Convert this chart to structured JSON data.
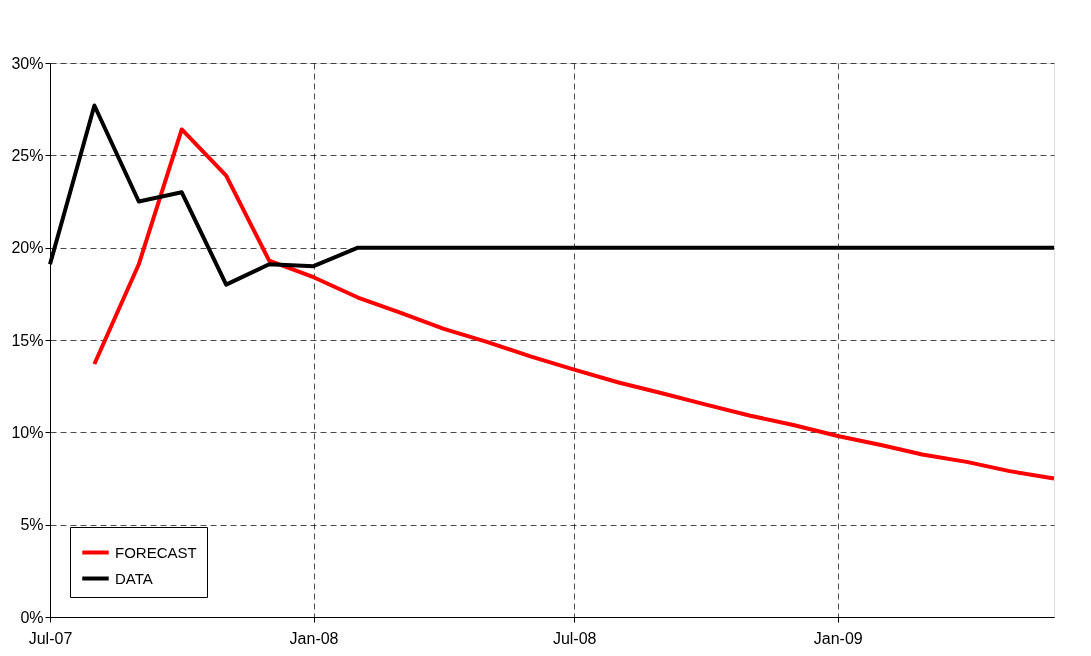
{
  "chart_data": {
    "type": "line",
    "x": [
      "2007-07",
      "2007-08",
      "2007-09",
      "2007-10",
      "2007-11",
      "2007-12",
      "2008-01",
      "2008-02",
      "2008-03",
      "2008-04",
      "2008-05",
      "2008-06",
      "2008-07",
      "2008-08",
      "2008-09",
      "2008-10",
      "2008-11",
      "2008-12",
      "2009-01",
      "2009-02",
      "2009-03",
      "2009-04",
      "2009-05",
      "2009-06"
    ],
    "series": [
      {
        "name": "FORECAST",
        "color": "#ff0000",
        "values": [
          null,
          13.7,
          19.1,
          26.4,
          23.9,
          19.3,
          18.4,
          17.3,
          16.5,
          15.6,
          14.9,
          14.1,
          13.4,
          12.7,
          12.1,
          11.5,
          10.9,
          10.4,
          9.8,
          9.3,
          8.8,
          8.4,
          7.9,
          7.5
        ]
      },
      {
        "name": "DATA",
        "color": "#000000",
        "values": [
          19.1,
          27.7,
          22.5,
          23.0,
          18.0,
          19.1,
          19.0,
          20,
          20,
          20,
          20,
          20,
          20,
          20,
          20,
          20,
          20,
          20,
          20,
          20,
          20,
          20,
          20,
          20
        ]
      }
    ],
    "xlim": [
      "2007-07",
      "2009-06"
    ],
    "xticks": [
      {
        "value": "2007-07",
        "label": "Jul-07"
      },
      {
        "value": "2008-01",
        "label": "Jan-08"
      },
      {
        "value": "2008-07",
        "label": "Jul-08"
      },
      {
        "value": "2009-01",
        "label": "Jan-09"
      }
    ],
    "ylim": [
      0,
      30
    ],
    "yticks": [
      {
        "value": 0,
        "label": "0%"
      },
      {
        "value": 5,
        "label": "5%"
      },
      {
        "value": 10,
        "label": "10%"
      },
      {
        "value": 15,
        "label": "15%"
      },
      {
        "value": 20,
        "label": "20%"
      },
      {
        "value": 25,
        "label": "25%"
      },
      {
        "value": 30,
        "label": "30%"
      }
    ],
    "grid": true,
    "legend": "bottom left",
    "marker": "none",
    "line_style": "solid"
  }
}
